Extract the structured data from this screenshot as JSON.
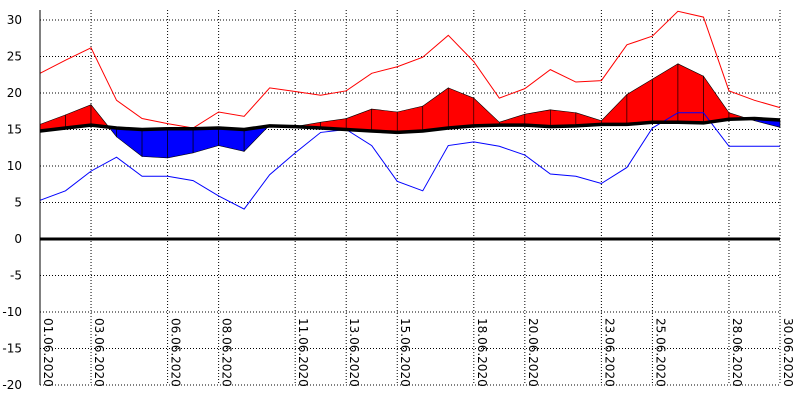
{
  "chart_data": {
    "type": "area",
    "title": "",
    "xlabel": "",
    "ylabel": "",
    "ylim": [
      -20,
      31
    ],
    "yticks": [
      30,
      25,
      20,
      15,
      10,
      5,
      0,
      -5,
      -10,
      -15,
      -20
    ],
    "ytick_labels": [
      "30",
      "25",
      "20",
      "15",
      "10",
      "5",
      "0",
      "-5",
      "-10",
      "-15",
      "-20"
    ],
    "grid": true,
    "x": [
      "01.06.2020",
      "02.06.2020",
      "03.06.2020",
      "04.06.2020",
      "05.06.2020",
      "06.06.2020",
      "07.06.2020",
      "08.06.2020",
      "09.06.2020",
      "10.06.2020",
      "11.06.2020",
      "12.06.2020",
      "13.06.2020",
      "14.06.2020",
      "15.06.2020",
      "16.06.2020",
      "17.06.2020",
      "18.06.2020",
      "19.06.2020",
      "20.06.2020",
      "21.06.2020",
      "22.06.2020",
      "23.06.2020",
      "24.06.2020",
      "25.06.2020",
      "26.06.2020",
      "27.06.2020",
      "28.06.2020",
      "29.06.2020",
      "30.06.2020"
    ],
    "xtick_labels": [
      "01.06.2020",
      "03.06.2020",
      "06.06.2020",
      "08.06.2020",
      "11.06.2020",
      "13.06.2020",
      "15.06.2020",
      "18.06.2020",
      "20.06.2020",
      "23.06.2020",
      "25.06.2020",
      "28.06.2020",
      "30.06.2020"
    ],
    "series": [
      {
        "color": "#ff0000",
        "style": "thin-line",
        "values": [
          22.7,
          24.5,
          26.2,
          19.0,
          16.5,
          15.8,
          15.2,
          17.4,
          16.8,
          20.7,
          20.2,
          19.7,
          20.3,
          22.7,
          23.6,
          24.9,
          27.9,
          24.3,
          19.3,
          20.6,
          23.2,
          21.5,
          21.7,
          26.6,
          27.8,
          31.2,
          30.4,
          20.3,
          19.0,
          18.0
        ]
      },
      {
        "color": "#0000ff",
        "style": "thin-line",
        "values": [
          5.3,
          6.6,
          9.3,
          11.2,
          8.6,
          8.6,
          8.0,
          5.9,
          4.1,
          8.8,
          11.8,
          14.6,
          15.0,
          12.8,
          7.9,
          6.6,
          12.8,
          13.3,
          12.7,
          11.5,
          8.9,
          8.6,
          7.6,
          9.8,
          15.2,
          17.3,
          17.3,
          12.7,
          12.7,
          12.7
        ]
      },
      {
        "color": "#000000",
        "style": "thick-line",
        "values": [
          14.8,
          15.2,
          15.6,
          15.2,
          15.0,
          15.1,
          15.1,
          15.2,
          15.0,
          15.5,
          15.4,
          15.2,
          15.0,
          14.8,
          14.6,
          14.8,
          15.2,
          15.5,
          15.6,
          15.6,
          15.4,
          15.5,
          15.7,
          15.7,
          16.0,
          16.0,
          15.9,
          16.4,
          16.5,
          16.3
        ]
      },
      {
        "color": "#ff0000",
        "negative_color": "#0000ff",
        "style": "filled-band",
        "values": [
          15.7,
          17.0,
          18.4,
          14.0,
          11.3,
          11.1,
          11.8,
          12.8,
          12.0,
          15.6,
          15.4,
          16.0,
          16.5,
          17.8,
          17.4,
          18.2,
          20.7,
          19.3,
          16.0,
          17.1,
          17.7,
          17.3,
          16.2,
          19.8,
          21.9,
          24.0,
          22.3,
          17.3,
          16.2,
          15.3
        ]
      }
    ]
  }
}
